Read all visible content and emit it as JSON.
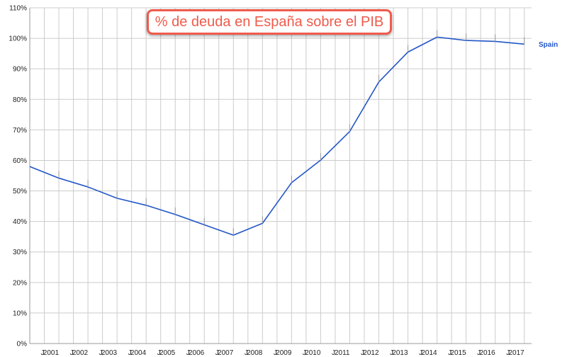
{
  "chart_data": {
    "type": "line",
    "title": "% de deuda en España sobre el PIB",
    "xlabel": "",
    "ylabel": "",
    "ylim": [
      0,
      110
    ],
    "y_ticks": [
      "0%",
      "10%",
      "20%",
      "30%",
      "40%",
      "50%",
      "60%",
      "70%",
      "80%",
      "90%",
      "100%",
      "110%"
    ],
    "x_ticks": [
      "J",
      "2001",
      "J",
      "2002",
      "J",
      "2003",
      "J",
      "2004",
      "J",
      "2005",
      "J",
      "2006",
      "J",
      "2007",
      "J",
      "2008",
      "J",
      "2009",
      "J",
      "2010",
      "J",
      "2011",
      "J",
      "2012",
      "J",
      "2013",
      "J",
      "2014",
      "J",
      "2015",
      "J",
      "2016",
      "J",
      "2017"
    ],
    "grid": true,
    "series": [
      {
        "name": "Spain",
        "color": "#2256c7",
        "x": [
          2000,
          2001,
          2002,
          2003,
          2004,
          2005,
          2006,
          2007,
          2008,
          2009,
          2010,
          2011,
          2012,
          2013,
          2014,
          2015,
          2016,
          2017
        ],
        "values": [
          58.0,
          54.2,
          51.3,
          47.6,
          45.3,
          42.3,
          38.9,
          35.5,
          39.4,
          52.7,
          60.1,
          69.5,
          85.7,
          95.5,
          100.4,
          99.3,
          99.0,
          98.1
        ]
      }
    ]
  }
}
